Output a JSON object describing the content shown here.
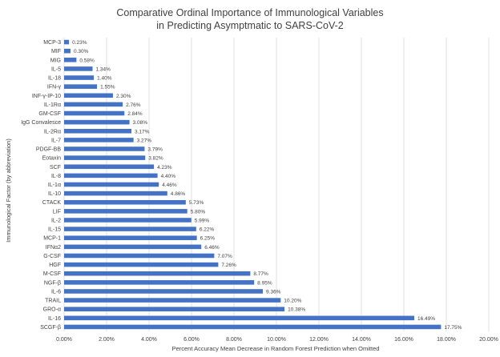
{
  "chart_data": {
    "type": "bar",
    "orientation": "horizontal",
    "title_lines": [
      "Comparative Ordinal Importance of Immunological Variables",
      "in Predicting Asymptmatic to SARS-CoV-2"
    ],
    "xlabel": "Percent Accuracy Mean Decrease in Random Forest Prediction when Omitted",
    "ylabel": "Immunological Factor (by abbreviation)",
    "xlim": [
      0,
      20
    ],
    "x_ticks": [
      0,
      2,
      4,
      6,
      8,
      10,
      12,
      14,
      16,
      18,
      20
    ],
    "x_tick_labels": [
      "0.00%",
      "2.00%",
      "4.00%",
      "6.00%",
      "8.00%",
      "10.00%",
      "12.00%",
      "14.00%",
      "16.00%",
      "18.00%",
      "20.00%"
    ],
    "bar_color": "#4472c4",
    "grid": true,
    "categories": [
      "MCP-3",
      "MIF",
      "MIG",
      "IL-5",
      "IL-18",
      "IFN-γ",
      "INF-γ-IP-10",
      "IL-1Rα",
      "GM-CSF",
      "IgG Convalesce",
      "IL-2Rα",
      "IL-7",
      "PDGF-BB",
      "Eotaxin",
      "SCF",
      "IL-8",
      "IL-1α",
      "IL-10",
      "CTACK",
      "LIF",
      "IL-2",
      "IL-15",
      "MCP-1",
      "IFNα2",
      "G-CSF",
      "HGF",
      "M-CSF",
      "NGF-β",
      "IL-6",
      "TRAIL",
      "GRO-α",
      "IL-16",
      "SCGF-β"
    ],
    "values": [
      0.23,
      0.3,
      0.58,
      1.34,
      1.4,
      1.55,
      2.3,
      2.76,
      2.84,
      3.08,
      3.17,
      3.27,
      3.79,
      3.82,
      4.23,
      4.4,
      4.46,
      4.86,
      5.73,
      5.8,
      5.99,
      6.22,
      6.25,
      6.46,
      7.07,
      7.26,
      8.77,
      8.95,
      9.36,
      10.2,
      10.38,
      16.49,
      17.75
    ],
    "value_labels": [
      "0.23%",
      "0.30%",
      "0.58%",
      "1.34%",
      "1.40%",
      "1.55%",
      "2.30%",
      "2.76%",
      "2.84%",
      "3.08%",
      "3.17%",
      "3.27%",
      "3.79%",
      "3.82%",
      "4.23%",
      "4.40%",
      "4.46%",
      "4.86%",
      "5.73%",
      "5.80%",
      "5.99%",
      "6.22%",
      "6.25%",
      "6.46%",
      "7.07%",
      "7.26%",
      "8.77%",
      "8.95%",
      "9.36%",
      "10.20%",
      "10.38%",
      "16.49%",
      "17.75%"
    ]
  }
}
